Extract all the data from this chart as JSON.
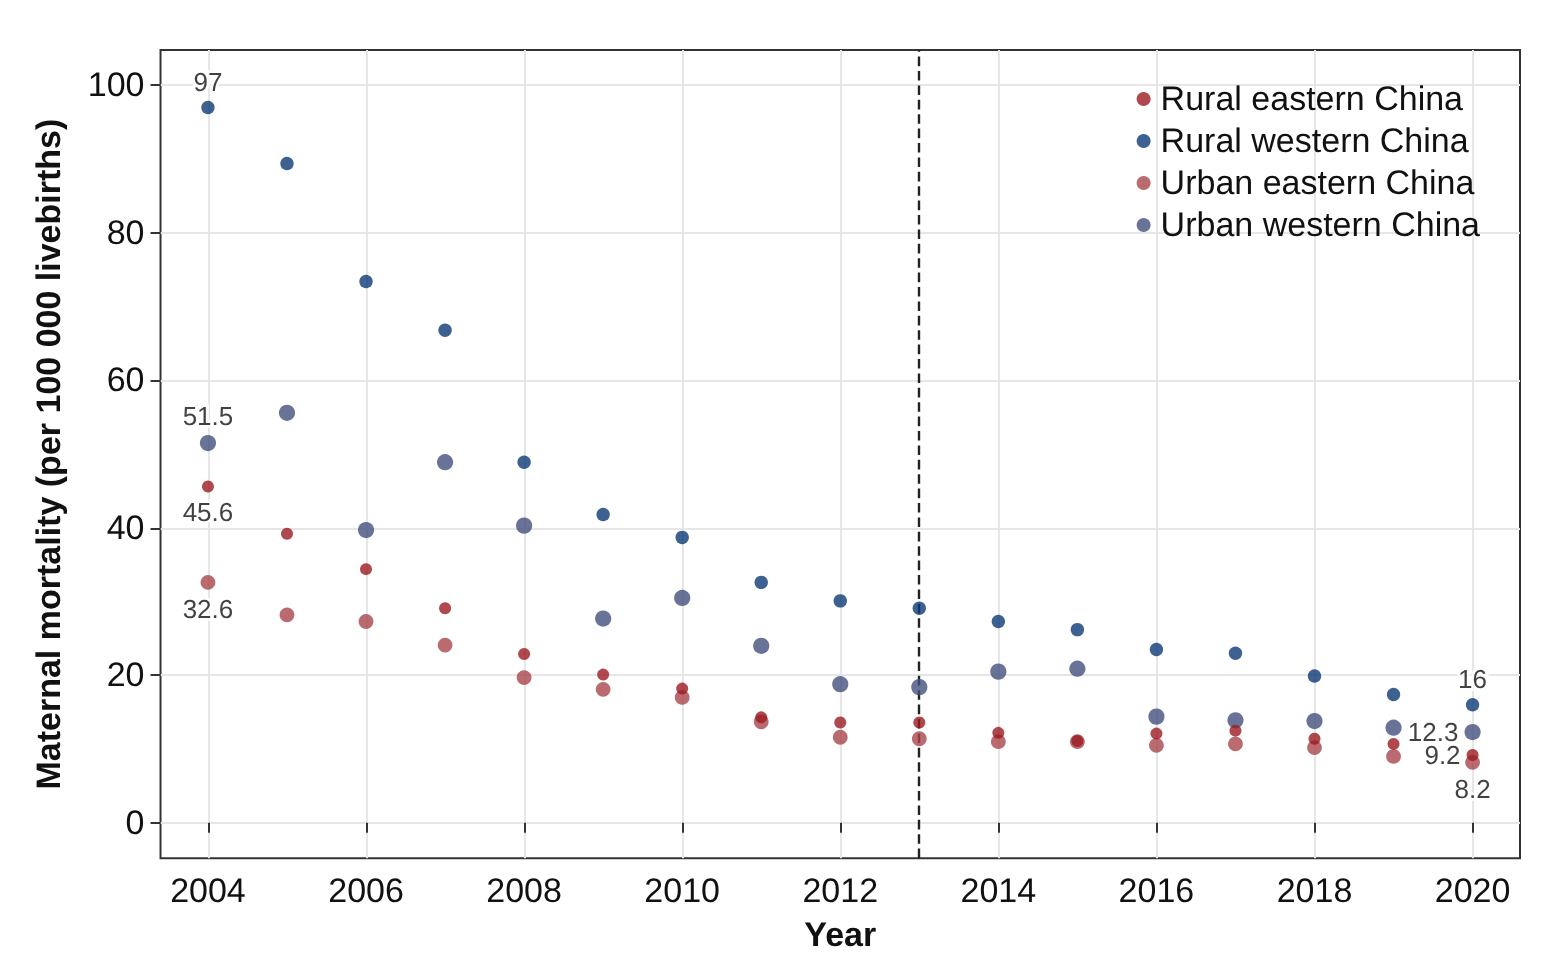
{
  "chart_data": {
    "type": "scatter",
    "xlabel": "Year",
    "ylabel": "Maternal mortality (per 100 000 livebirths)",
    "x": [
      2004,
      2005,
      2006,
      2007,
      2008,
      2009,
      2010,
      2011,
      2012,
      2013,
      2014,
      2015,
      2016,
      2017,
      2018,
      2019,
      2020
    ],
    "series": [
      {
        "name": "Rural eastern China",
        "color": "#9b1b22",
        "values": [
          45.6,
          39.2,
          34.4,
          29.1,
          22.9,
          20.1,
          18.2,
          14.3,
          13.6,
          13.6,
          12.2,
          11.1,
          12.1,
          12.5,
          11.4,
          10.7,
          9.2
        ],
        "value_labels": [
          "45.6",
          null,
          null,
          null,
          null,
          null,
          null,
          null,
          null,
          null,
          null,
          null,
          null,
          null,
          null,
          null,
          "9.2"
        ]
      },
      {
        "name": "Rural western China",
        "color": "#0d3a75",
        "values": [
          97,
          89.4,
          73.4,
          66.8,
          48.9,
          41.8,
          38.7,
          32.6,
          30.1,
          29.1,
          27.3,
          26.2,
          23.5,
          23.0,
          19.9,
          17.4,
          16
        ],
        "value_labels": [
          "97",
          null,
          null,
          null,
          null,
          null,
          null,
          null,
          null,
          null,
          null,
          null,
          null,
          null,
          null,
          null,
          "16"
        ]
      },
      {
        "name": "Urban eastern China",
        "color": "#a8464b",
        "values": [
          32.6,
          28.2,
          27.3,
          24.1,
          19.7,
          18.1,
          17.0,
          13.7,
          11.6,
          11.4,
          11.0,
          11.0,
          10.5,
          10.7,
          10.2,
          9.0,
          8.2
        ],
        "value_labels": [
          "32.6",
          null,
          null,
          null,
          null,
          null,
          null,
          null,
          null,
          null,
          null,
          null,
          null,
          null,
          null,
          null,
          "8.2"
        ]
      },
      {
        "name": "Urban western China",
        "color": "#44507e",
        "values": [
          51.5,
          55.6,
          39.7,
          48.9,
          40.3,
          27.7,
          30.5,
          24.0,
          18.8,
          18.4,
          20.5,
          20.9,
          14.4,
          13.9,
          13.8,
          12.9,
          12.3
        ],
        "value_labels": [
          "51.5",
          null,
          null,
          null,
          null,
          null,
          null,
          null,
          null,
          null,
          null,
          null,
          null,
          null,
          null,
          null,
          "12.3"
        ]
      }
    ],
    "xlim": [
      2003.4,
      2020.6
    ],
    "xticks": [
      2004,
      2006,
      2008,
      2010,
      2012,
      2014,
      2016,
      2018,
      2020
    ],
    "ylim": [
      -4.8,
      104.8
    ],
    "yticks": [
      0,
      20,
      40,
      60,
      80,
      100
    ],
    "ref_lines": [
      {
        "axis": "x",
        "value": 2013,
        "line_style": "dashed",
        "color": "#222222"
      }
    ],
    "grid": true,
    "legend": "top right",
    "marker": "circle"
  }
}
